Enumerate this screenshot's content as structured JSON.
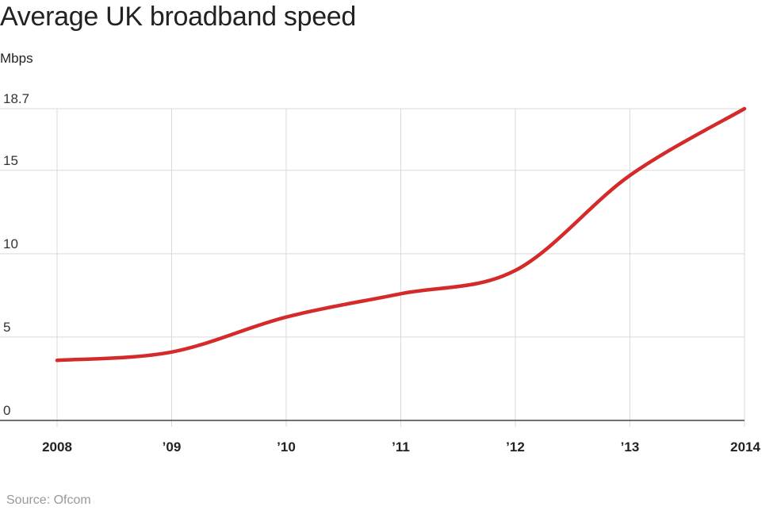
{
  "chart_data": {
    "type": "line",
    "title": "Average UK broadband speed",
    "ylabel": "Mbps",
    "source": "Source: Ofcom",
    "x": [
      2008,
      2009,
      2010,
      2011,
      2012,
      2013,
      2014
    ],
    "x_tick_labels": [
      "2008",
      "’09",
      "’10",
      "’11",
      "’12",
      "’13",
      "2014"
    ],
    "y_ticks": [
      0,
      5,
      10,
      15,
      18.7
    ],
    "y_tick_labels": [
      "0",
      "5",
      "10",
      "15",
      "18.7"
    ],
    "ylim": [
      0,
      18.7
    ],
    "grid": true,
    "series": [
      {
        "color": "#d52a2a",
        "values": [
          3.6,
          4.1,
          6.2,
          7.6,
          9.0,
          14.7,
          18.7
        ]
      }
    ]
  }
}
